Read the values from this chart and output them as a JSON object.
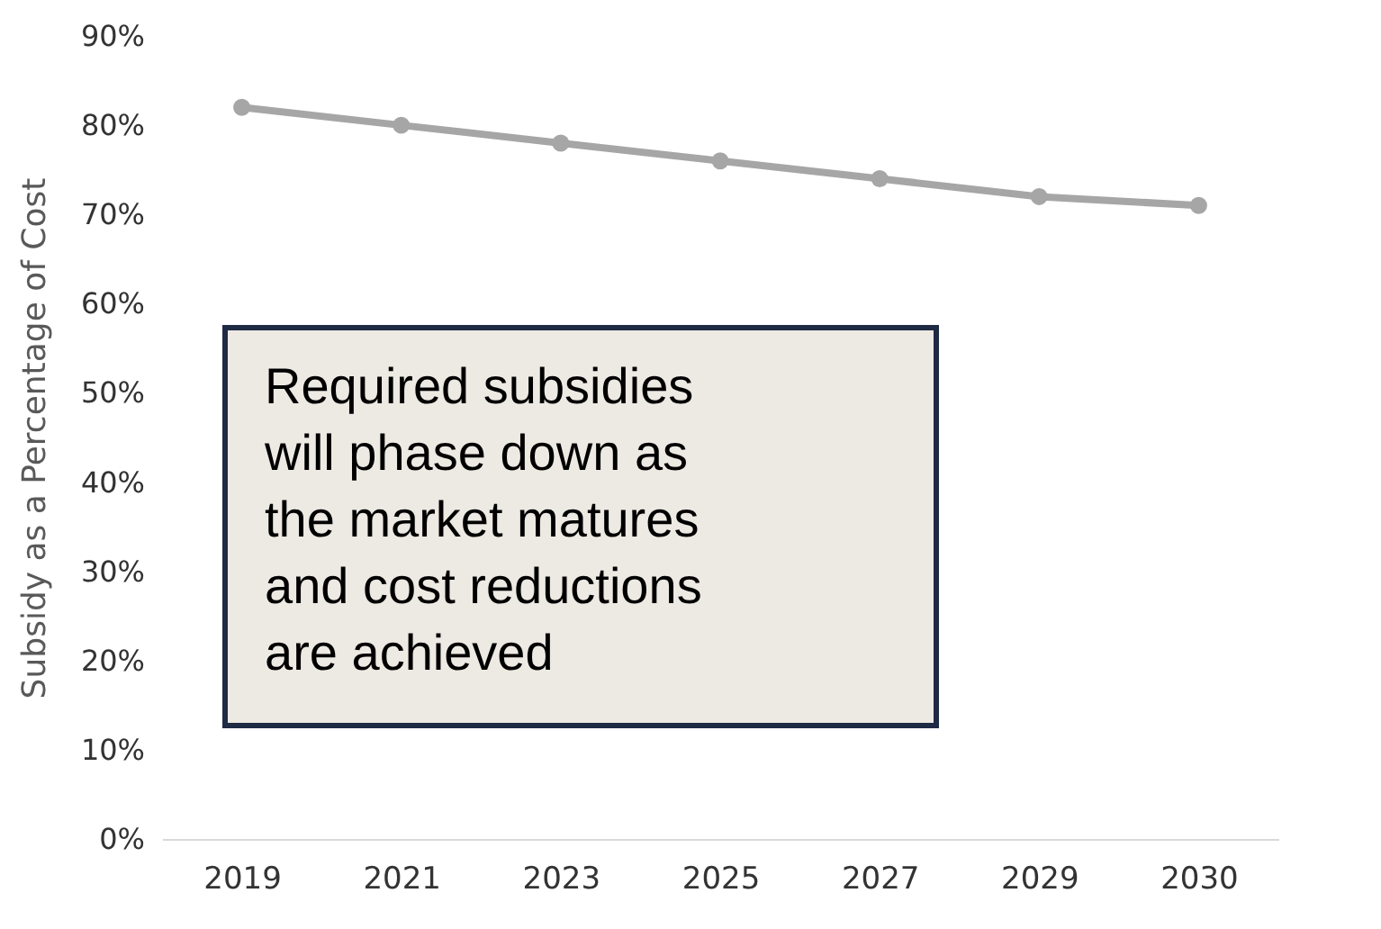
{
  "chart_data": {
    "type": "line",
    "ylabel": "Subsidy as a Percentage of Cost",
    "categories": [
      "2019",
      "2021",
      "2023",
      "2025",
      "2027",
      "2029",
      "2030"
    ],
    "series": [
      {
        "color": "#a6a6a6",
        "values": [
          82,
          80,
          78,
          76,
          74,
          72,
          71
        ]
      }
    ],
    "ylim": [
      0,
      90
    ],
    "yticks": [
      {
        "value": 0,
        "label": "0%"
      },
      {
        "value": 10,
        "label": "10%"
      },
      {
        "value": 20,
        "label": "20%"
      },
      {
        "value": 30,
        "label": "30%"
      },
      {
        "value": 40,
        "label": "40%"
      },
      {
        "value": 50,
        "label": "50%"
      },
      {
        "value": 60,
        "label": "60%"
      },
      {
        "value": 70,
        "label": "70%"
      },
      {
        "value": 80,
        "label": "80%"
      },
      {
        "value": 90,
        "label": "90%"
      }
    ],
    "grid": false,
    "legend": false,
    "marker": "circle",
    "line_style": "solid",
    "annotations": [
      "Required subsidies will phase down as the market matures and cost reductions are achieved"
    ]
  }
}
